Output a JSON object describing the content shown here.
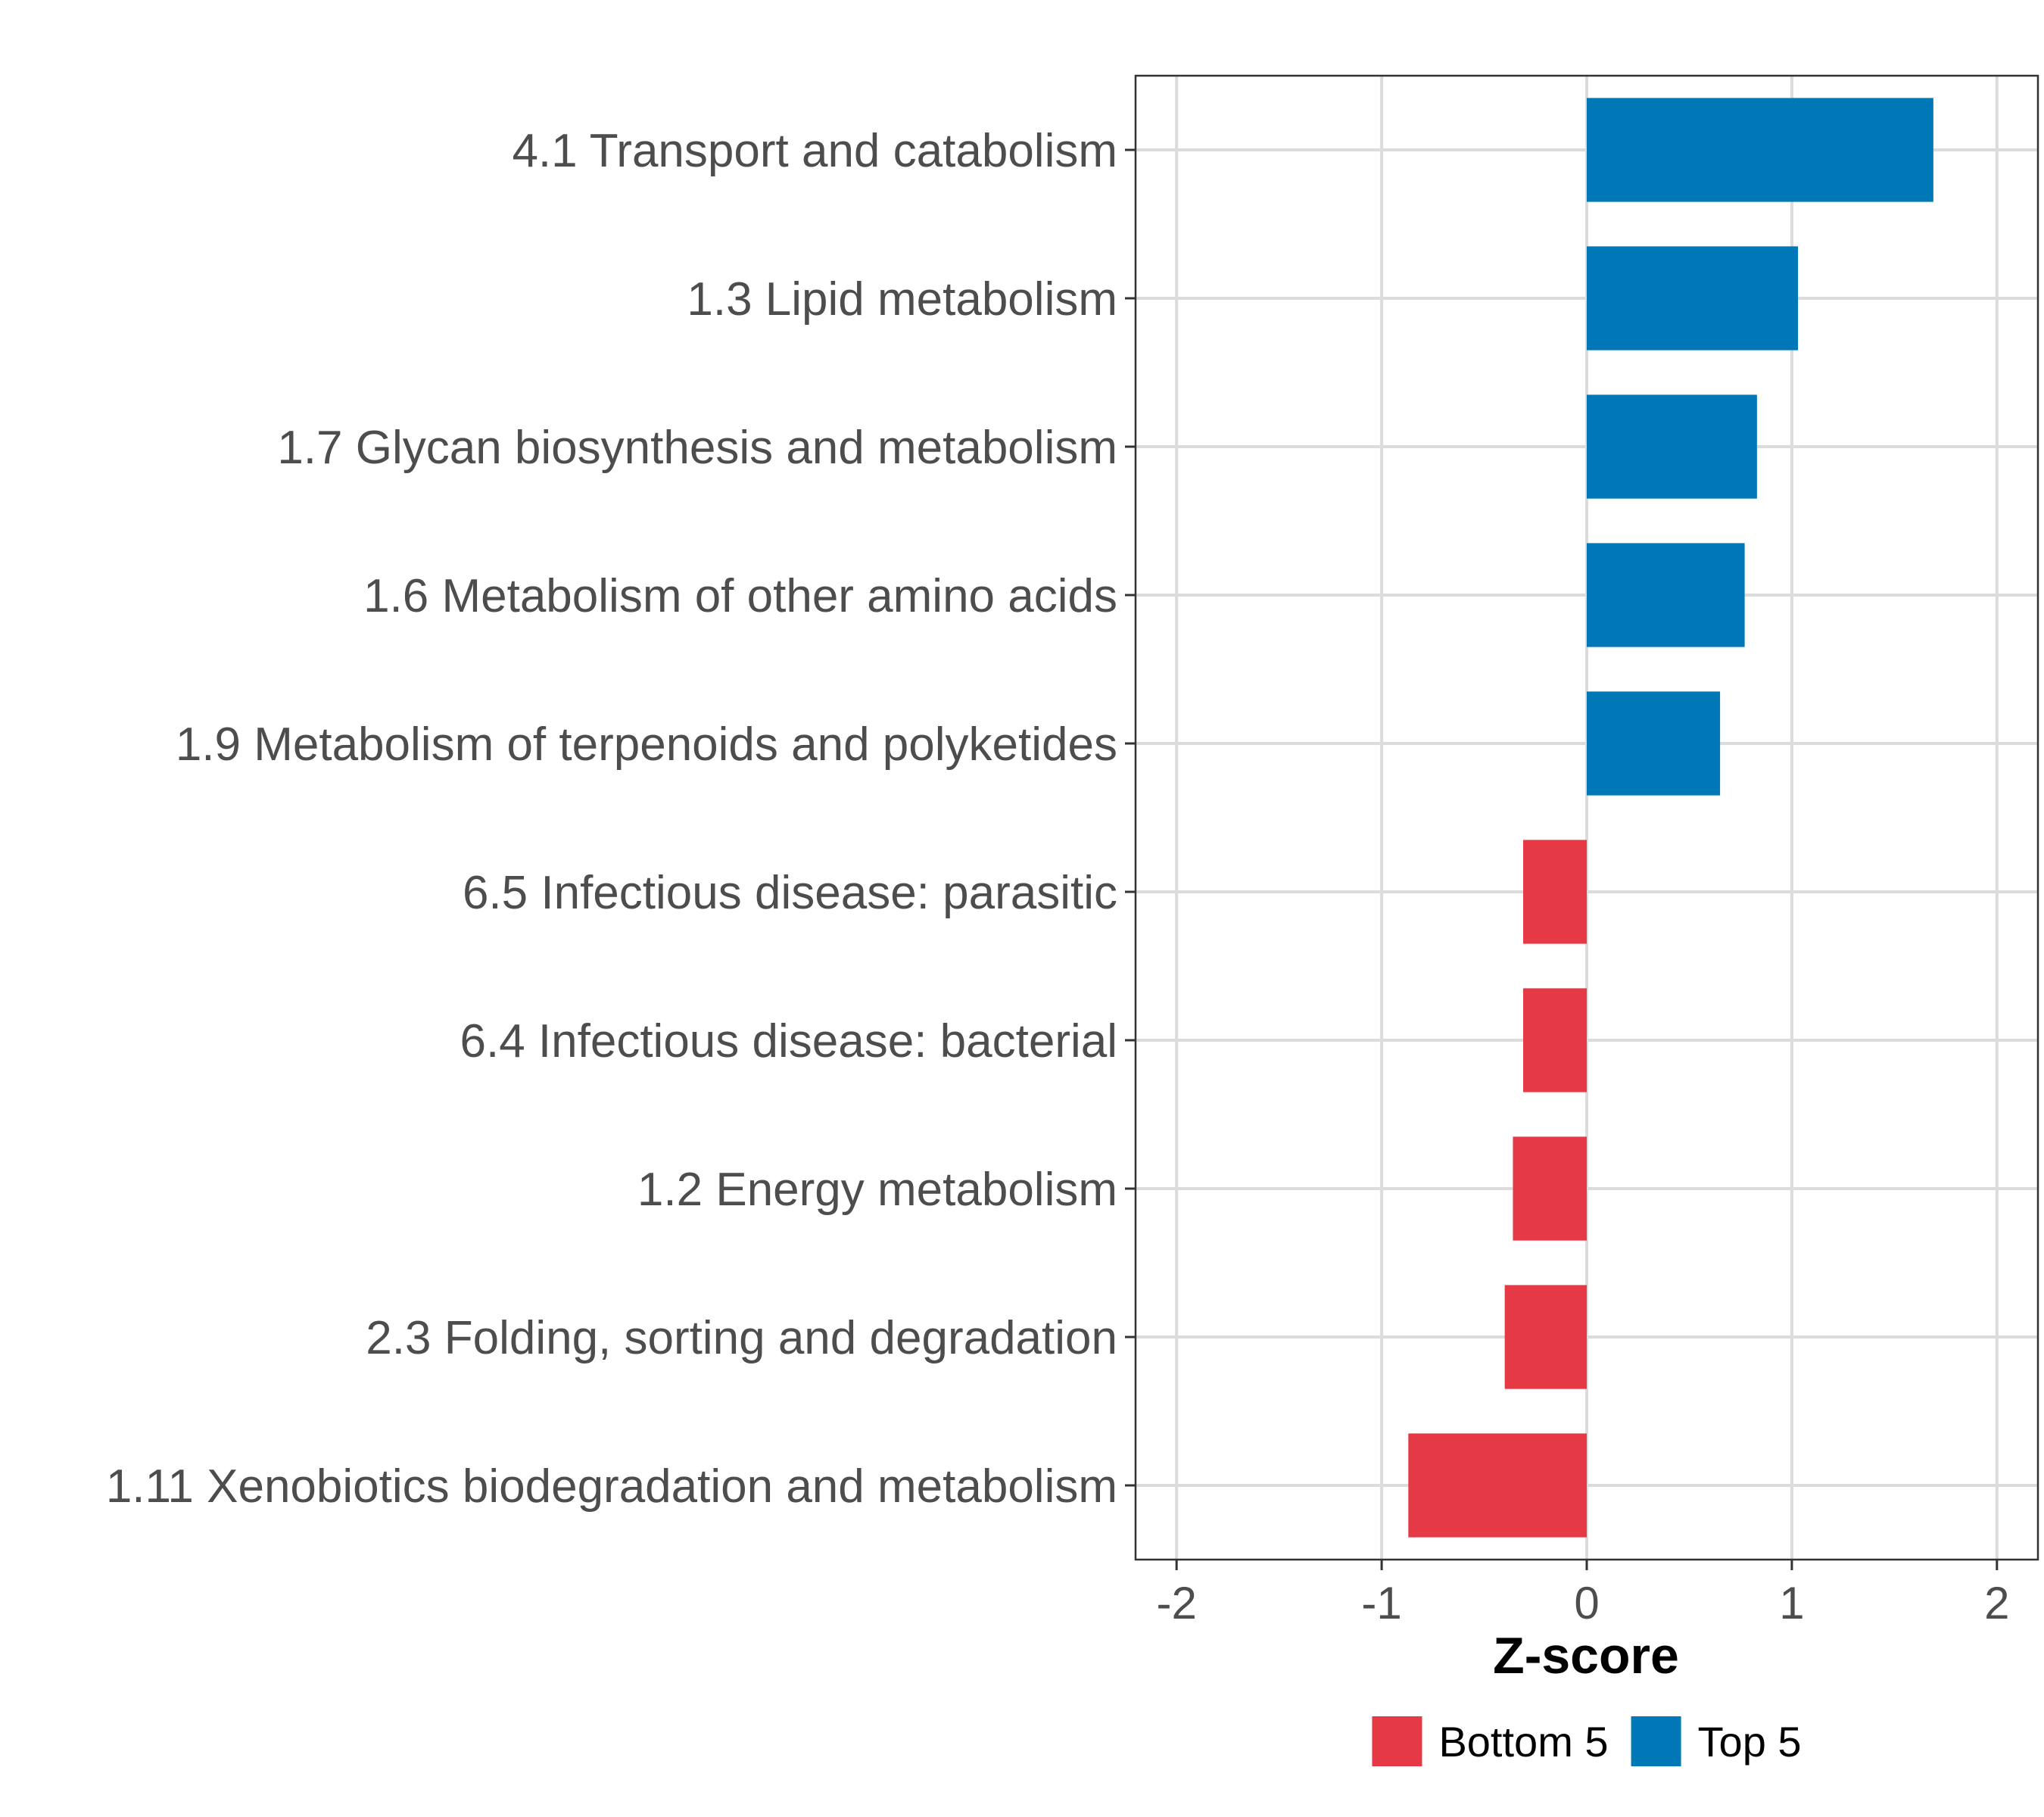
{
  "chart_data": {
    "type": "bar",
    "orientation": "horizontal",
    "title": "",
    "xlabel": "Z-score",
    "ylabel": "",
    "xlim": [
      -2.2,
      2.2
    ],
    "xticks": [
      -2,
      -1,
      0,
      1,
      2
    ],
    "xtick_labels": [
      "-2",
      "-1",
      "0",
      "1",
      "2"
    ],
    "grid": true,
    "legend_position": "bottom",
    "categories": [
      "4.1 Transport and catabolism",
      "1.3 Lipid metabolism",
      "1.7 Glycan biosynthesis and metabolism",
      "1.6 Metabolism of other amino acids",
      "1.9 Metabolism of terpenoids and polyketides",
      "6.5 Infectious disease: parasitic",
      "6.4 Infectious disease: bacterial",
      "1.2 Energy metabolism",
      "2.3 Folding, sorting and degradation",
      "1.11 Xenobiotics biodegradation and metabolism"
    ],
    "values": [
      1.69,
      1.03,
      0.83,
      0.77,
      0.65,
      -0.31,
      -0.31,
      -0.36,
      -0.4,
      -0.87
    ],
    "groups": [
      "Top 5",
      "Top 5",
      "Top 5",
      "Top 5",
      "Top 5",
      "Bottom 5",
      "Bottom 5",
      "Bottom 5",
      "Bottom 5",
      "Bottom 5"
    ],
    "legend": [
      {
        "name": "Bottom 5",
        "color": "#e63946"
      },
      {
        "name": "Top 5",
        "color": "#0077b6"
      }
    ]
  }
}
